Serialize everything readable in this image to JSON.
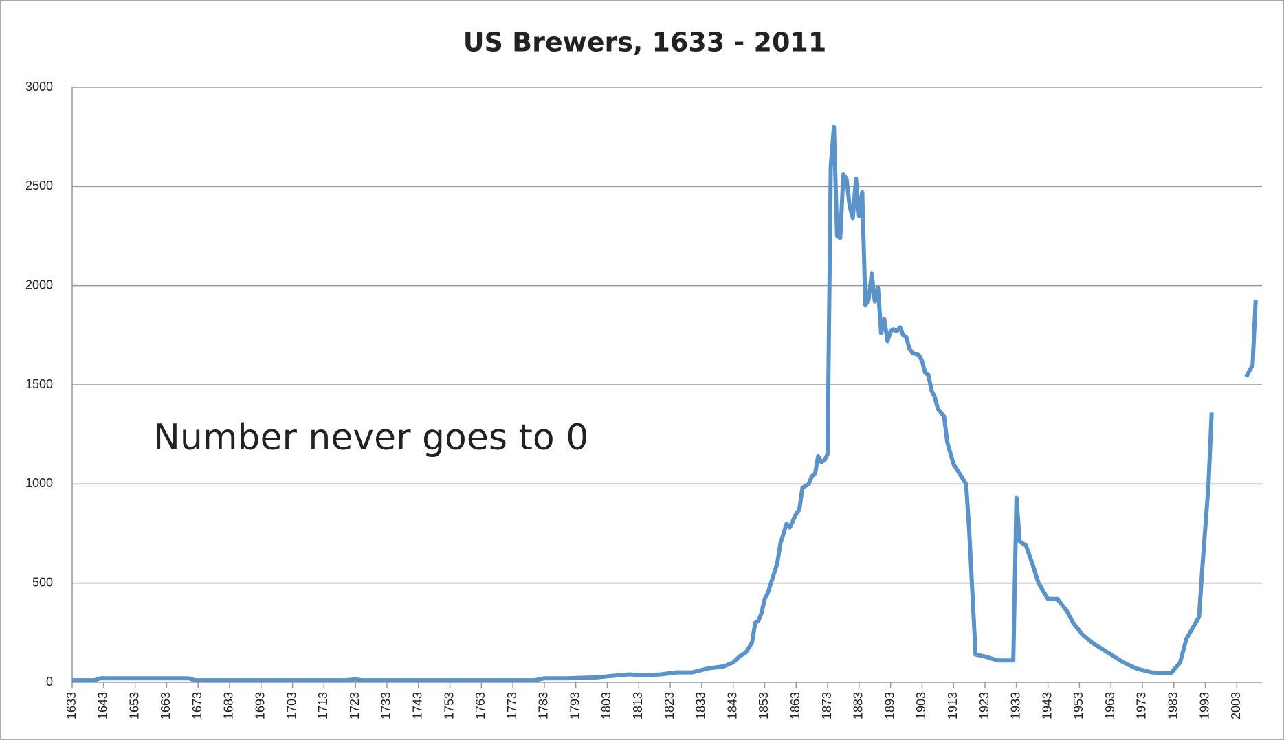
{
  "chart_data": {
    "type": "line",
    "title": "US Brewers, 1633 - 2011",
    "annotation": "Number never goes to 0",
    "x": [
      1633,
      1640,
      1642,
      1670,
      1672,
      1700,
      1720,
      1723,
      1725,
      1750,
      1780,
      1783,
      1790,
      1800,
      1803,
      1810,
      1815,
      1820,
      1825,
      1830,
      1835,
      1840,
      1843,
      1845,
      1847,
      1849,
      1850,
      1851,
      1852,
      1853,
      1854,
      1856,
      1857,
      1858,
      1859,
      1860,
      1861,
      1863,
      1864,
      1865,
      1867,
      1868,
      1869,
      1870,
      1871,
      1872,
      1873,
      1874,
      1875,
      1876,
      1877,
      1878,
      1879,
      1880,
      1881,
      1882,
      1883,
      1884,
      1885,
      1886,
      1887,
      1888,
      1889,
      1890,
      1891,
      1892,
      1893,
      1894,
      1895,
      1896,
      1897,
      1898,
      1899,
      1900,
      1902,
      1903,
      1904,
      1905,
      1906,
      1907,
      1908,
      1909,
      1910,
      1911,
      1913,
      1917,
      1918,
      1920,
      1923,
      1927,
      1932,
      1933,
      1934,
      1936,
      1938,
      1940,
      1943,
      1946,
      1949,
      1951,
      1954,
      1957,
      1960,
      1963,
      1967,
      1971,
      1976,
      1982,
      1985,
      1987,
      1991,
      1992,
      1994,
      1995,
      2000,
      2006,
      2008,
      2009
    ],
    "values": [
      10,
      10,
      20,
      20,
      10,
      10,
      10,
      15,
      10,
      10,
      10,
      20,
      20,
      25,
      30,
      40,
      35,
      40,
      50,
      50,
      70,
      80,
      100,
      130,
      150,
      200,
      300,
      310,
      350,
      420,
      450,
      550,
      600,
      700,
      750,
      800,
      780,
      850,
      870,
      980,
      1000,
      1040,
      1050,
      1140,
      1110,
      1120,
      1150,
      2600,
      2800,
      2250,
      2240,
      2560,
      2540,
      2400,
      2340,
      2540,
      2350,
      2470,
      1900,
      1930,
      2060,
      1920,
      1990,
      1760,
      1830,
      1720,
      1770,
      1780,
      1770,
      1790,
      1750,
      1740,
      1680,
      1660,
      1650,
      1620,
      1560,
      1550,
      1470,
      1440,
      1380,
      1360,
      1340,
      1210,
      1100,
      1000,
      760,
      140,
      130,
      110,
      110,
      930,
      710,
      690,
      600,
      500,
      420,
      420,
      360,
      300,
      240,
      200,
      170,
      140,
      100,
      70,
      50,
      45,
      100,
      220,
      330,
      570,
      1000,
      1360,
      null,
      1540,
      1600,
      1930
    ],
    "color": "#5b93c8",
    "xlim": [
      1633,
      2011
    ],
    "xticks": [
      1633,
      1643,
      1653,
      1663,
      1673,
      1683,
      1693,
      1703,
      1713,
      1723,
      1733,
      1743,
      1753,
      1763,
      1773,
      1783,
      1793,
      1803,
      1813,
      1823,
      1833,
      1843,
      1853,
      1863,
      1873,
      1883,
      1893,
      1903,
      1913,
      1923,
      1933,
      1943,
      1953,
      1963,
      1973,
      1983,
      1993,
      2003
    ],
    "ylim": [
      0,
      3000
    ],
    "yticks": [
      0,
      500,
      1000,
      1500,
      2000,
      2500,
      3000
    ],
    "grid": true
  }
}
